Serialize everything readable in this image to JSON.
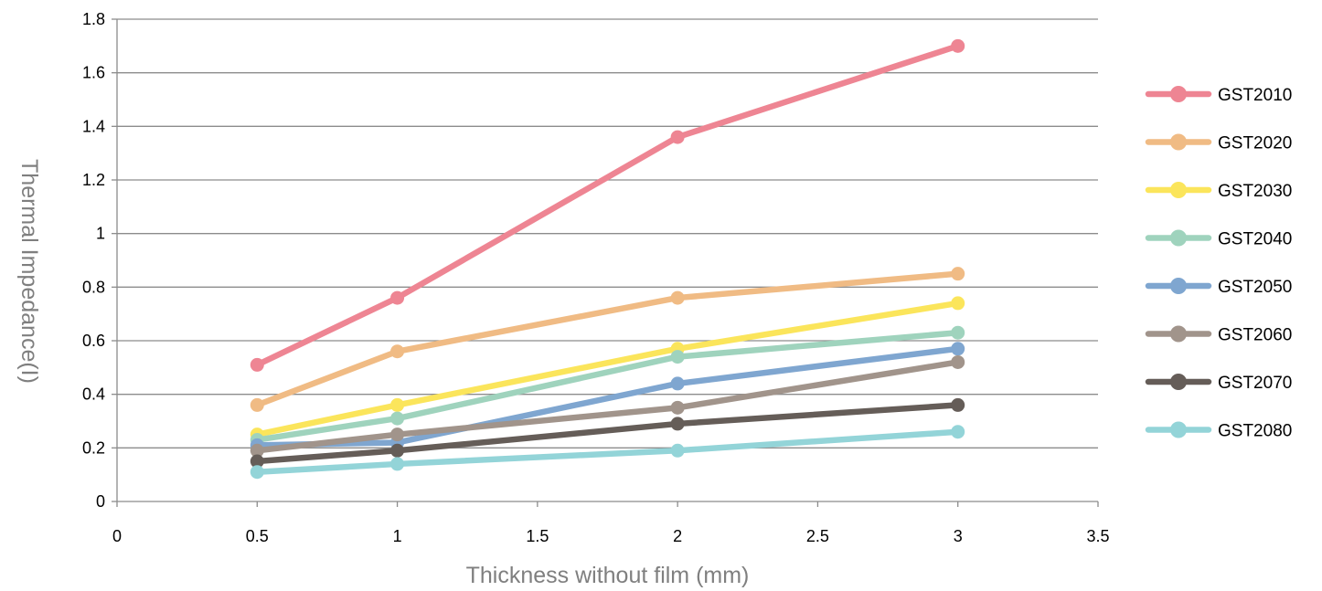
{
  "chart_data": {
    "type": "line",
    "title": "",
    "xlabel": "Thickness without film (mm)",
    "ylabel": "Thermal Impedance(I)",
    "xlim": [
      0,
      3.5
    ],
    "ylim": [
      0,
      1.8
    ],
    "x_ticks": [
      "0",
      "0.5",
      "1",
      "1.5",
      "2",
      "2.5",
      "3",
      "3.5"
    ],
    "y_ticks": [
      "0",
      "0.2",
      "0.4",
      "0.6",
      "0.8",
      "1",
      "1.2",
      "1.4",
      "1.6",
      "1.8"
    ],
    "grid": "horizontal",
    "legend_position": "right",
    "x": [
      0.5,
      1,
      2,
      3
    ],
    "series": [
      {
        "name": "GST2010",
        "color": "#ee8593",
        "values": [
          0.51,
          0.76,
          1.36,
          1.7
        ]
      },
      {
        "name": "GST2020",
        "color": "#f0bb84",
        "values": [
          0.36,
          0.56,
          0.76,
          0.85
        ]
      },
      {
        "name": "GST2030",
        "color": "#fbe55b",
        "values": [
          0.25,
          0.36,
          0.57,
          0.74
        ]
      },
      {
        "name": "GST2040",
        "color": "#9fd3bd",
        "values": [
          0.23,
          0.31,
          0.54,
          0.63
        ]
      },
      {
        "name": "GST2050",
        "color": "#7fa6d0",
        "values": [
          0.21,
          0.22,
          0.44,
          0.57
        ]
      },
      {
        "name": "GST2060",
        "color": "#a1948b",
        "values": [
          0.19,
          0.25,
          0.35,
          0.52
        ]
      },
      {
        "name": "GST2070",
        "color": "#655d58",
        "values": [
          0.15,
          0.19,
          0.29,
          0.36
        ]
      },
      {
        "name": "GST2080",
        "color": "#93d4d8",
        "values": [
          0.11,
          0.14,
          0.19,
          0.26
        ]
      }
    ]
  }
}
